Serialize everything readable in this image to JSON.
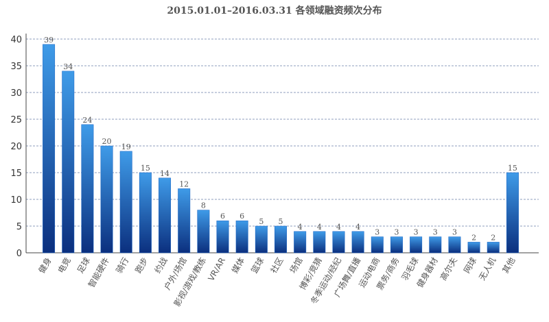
{
  "chart_data": {
    "type": "bar",
    "title": "2015.01.01–2016.03.31 各领域融资频次分布",
    "categories": [
      "健身",
      "电竞",
      "足球",
      "智能硬件",
      "骑行",
      "跑步",
      "约战",
      "户外/场馆",
      "影视/游戏/教练",
      "VR/AR",
      "媒体",
      "篮球",
      "社区",
      "场馆",
      "博彩/竞猜",
      "冬季运动/经纪",
      "广场舞/直播",
      "运动电商",
      "票务/商务",
      "羽毛球",
      "健身器材",
      "高尔夫",
      "网球",
      "无人机",
      "其他"
    ],
    "values": [
      39,
      34,
      24,
      20,
      19,
      15,
      14,
      12,
      8,
      6,
      6,
      5,
      5,
      4,
      4,
      4,
      4,
      3,
      3,
      3,
      3,
      3,
      2,
      2,
      15
    ],
    "color": "#1a63c4",
    "ylim": [
      0,
      40
    ],
    "yticks": [
      0,
      5,
      10,
      15,
      20,
      25,
      30,
      35,
      40
    ],
    "grid": true
  }
}
